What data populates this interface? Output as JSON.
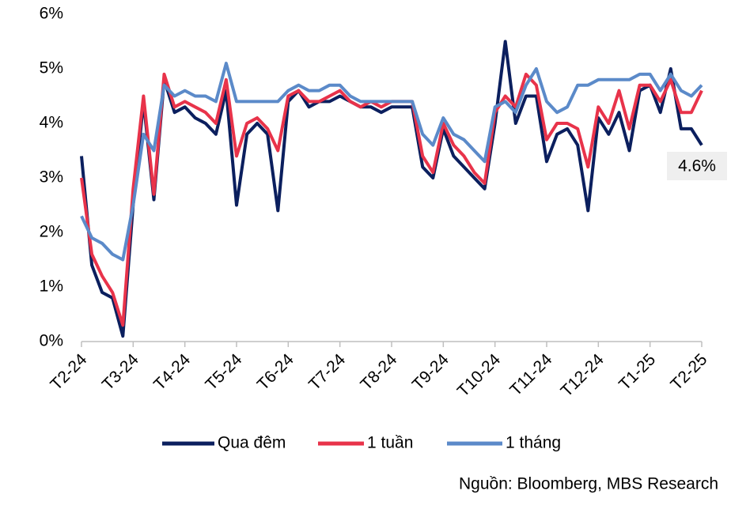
{
  "chart_data": {
    "type": "line",
    "categories": [
      "T2-24",
      null,
      null,
      null,
      null,
      "T3-24",
      null,
      null,
      null,
      null,
      "T4-24",
      null,
      null,
      null,
      null,
      "T5-24",
      null,
      null,
      null,
      null,
      "T6-24",
      null,
      null,
      null,
      null,
      "T7-24",
      null,
      null,
      null,
      null,
      "T8-24",
      null,
      null,
      null,
      null,
      "T9-24",
      null,
      null,
      null,
      null,
      "T10-24",
      null,
      null,
      null,
      null,
      "T11-24",
      null,
      null,
      null,
      null,
      "T12-24",
      null,
      null,
      null,
      null,
      "T1-25",
      null,
      null,
      null,
      null,
      "T2-25"
    ],
    "series": [
      {
        "name": "Qua đêm",
        "color": "#0b1f5e",
        "values": [
          3.4,
          1.4,
          0.9,
          0.8,
          0.1,
          2.5,
          4.4,
          2.6,
          4.8,
          4.2,
          4.3,
          4.1,
          4.0,
          3.8,
          4.6,
          2.5,
          3.8,
          4.0,
          3.8,
          2.4,
          4.4,
          4.6,
          4.3,
          4.4,
          4.4,
          4.5,
          4.4,
          4.3,
          4.3,
          4.2,
          4.3,
          4.3,
          4.3,
          3.2,
          3.0,
          3.9,
          3.4,
          3.2,
          3.0,
          2.8,
          4.0,
          5.5,
          4.0,
          4.5,
          4.5,
          3.3,
          3.8,
          3.9,
          3.6,
          2.4,
          4.1,
          3.8,
          4.2,
          3.5,
          4.6,
          4.7,
          4.2,
          5.0,
          3.9,
          3.9,
          3.6
        ]
      },
      {
        "name": "1 tuần",
        "color": "#e8334a",
        "values": [
          3.0,
          1.6,
          1.2,
          0.9,
          0.3,
          2.8,
          4.5,
          2.7,
          4.9,
          4.3,
          4.4,
          4.3,
          4.2,
          4.0,
          4.8,
          3.4,
          4.0,
          4.1,
          3.9,
          3.5,
          4.5,
          4.6,
          4.4,
          4.4,
          4.5,
          4.6,
          4.4,
          4.3,
          4.4,
          4.3,
          4.4,
          4.4,
          4.4,
          3.4,
          3.1,
          4.0,
          3.6,
          3.4,
          3.1,
          2.9,
          4.2,
          4.5,
          4.3,
          4.9,
          4.7,
          3.7,
          4.0,
          4.0,
          3.9,
          3.2,
          4.3,
          4.0,
          4.6,
          3.9,
          4.7,
          4.7,
          4.4,
          4.8,
          4.2,
          4.2,
          4.6
        ]
      },
      {
        "name": "1 tháng",
        "color": "#5b8ac9",
        "values": [
          2.3,
          1.9,
          1.8,
          1.6,
          1.5,
          2.5,
          3.8,
          3.5,
          4.7,
          4.5,
          4.6,
          4.5,
          4.5,
          4.4,
          5.1,
          4.4,
          4.4,
          4.4,
          4.4,
          4.4,
          4.6,
          4.7,
          4.6,
          4.6,
          4.7,
          4.7,
          4.5,
          4.4,
          4.4,
          4.4,
          4.4,
          4.4,
          4.4,
          3.8,
          3.6,
          4.1,
          3.8,
          3.7,
          3.5,
          3.3,
          4.3,
          4.4,
          4.2,
          4.7,
          5.0,
          4.4,
          4.2,
          4.3,
          4.7,
          4.7,
          4.8,
          4.8,
          4.8,
          4.8,
          4.9,
          4.9,
          4.6,
          4.9,
          4.6,
          4.5,
          4.7
        ]
      }
    ],
    "ylim": [
      0,
      6
    ],
    "yticks": [
      {
        "value": 0,
        "label": "0%"
      },
      {
        "value": 1,
        "label": "1%"
      },
      {
        "value": 2,
        "label": "2%"
      },
      {
        "value": 3,
        "label": "3%"
      },
      {
        "value": 4,
        "label": "4%"
      },
      {
        "value": 5,
        "label": "5%"
      },
      {
        "value": 6,
        "label": "6%"
      }
    ],
    "annotation": "4.6%",
    "source": "Nguồn: Bloomberg, MBS Research",
    "grid": false
  }
}
